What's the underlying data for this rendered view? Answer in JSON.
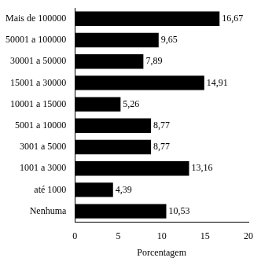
{
  "chart_data": {
    "type": "bar",
    "orientation": "horizontal",
    "x_label": "Porcentagem",
    "categories": [
      "Mais de 100000",
      "50001 a 100000",
      "30001 a 50000",
      "15001 a 30000",
      "10001 a 15000",
      "5001 a 10000",
      "3001 a 5000",
      "1001 a 3000",
      "até 1000",
      "Nenhuma"
    ],
    "values": [
      16.67,
      9.65,
      7.89,
      14.91,
      5.26,
      8.77,
      8.77,
      13.16,
      4.39,
      10.53
    ],
    "value_labels": [
      "16,67",
      "9,65",
      "7,89",
      "14,91",
      "5,26",
      "8,77",
      "8,77",
      "13,16",
      "4,39",
      "10,53"
    ],
    "color": "#000000",
    "xlim": [
      0,
      20
    ],
    "xticks": [
      0,
      5,
      10,
      15,
      20
    ],
    "grid": false,
    "data_labels": true
  }
}
